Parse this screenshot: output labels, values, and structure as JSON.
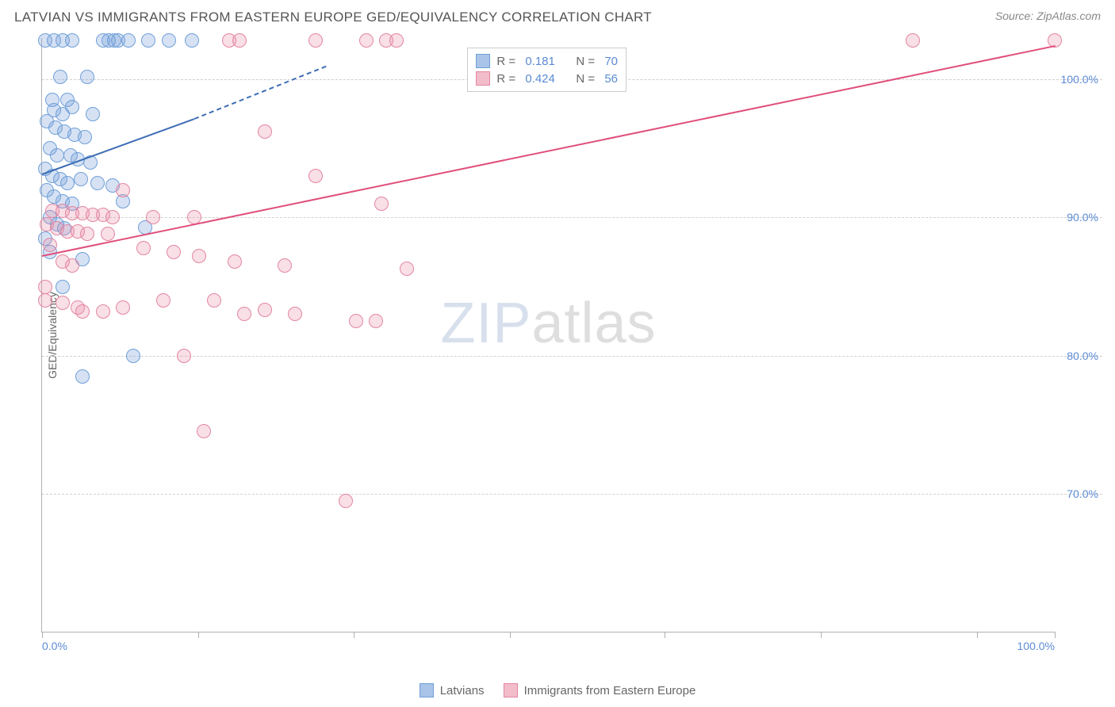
{
  "title": "LATVIAN VS IMMIGRANTS FROM EASTERN EUROPE GED/EQUIVALENCY CORRELATION CHART",
  "source": "Source: ZipAtlas.com",
  "watermark_a": "ZIP",
  "watermark_b": "atlas",
  "chart": {
    "type": "scatter",
    "background_color": "#ffffff",
    "grid_color": "#d0d0d0",
    "axis_color": "#b0b0b0",
    "tick_label_color": "#5b8bd4",
    "ylabel": "GED/Equivalency",
    "ylabel_color": "#666666",
    "ylabel_fontsize": 14,
    "xlim": [
      0,
      100
    ],
    "ylim": [
      60,
      103
    ],
    "xticks": [
      0,
      15.4,
      30.8,
      46.2,
      61.5,
      76.9,
      92.3,
      100
    ],
    "xtick_labels_shown": {
      "0": "0.0%",
      "100": "100.0%"
    },
    "yticks": [
      70,
      80,
      90,
      100
    ],
    "ytick_labels": {
      "70": "70.0%",
      "80": "80.0%",
      "90": "90.0%",
      "100": "100.0%"
    },
    "point_radius": 9,
    "point_stroke_width": 1.5,
    "series": [
      {
        "name": "Latvians",
        "fill": "rgba(120,160,220,0.30)",
        "stroke": "#6f9fd8",
        "swatch_fill": "#a9c4e8",
        "swatch_border": "#6f9fd8",
        "R": "0.181",
        "N": "70",
        "trend": {
          "color": "#3d6db5",
          "solid": {
            "x1": 0,
            "y1": 93.2,
            "x2": 15,
            "y2": 97.2
          },
          "dash": {
            "x1": 15,
            "y1": 97.2,
            "x2": 28,
            "y2": 101
          }
        },
        "points": [
          [
            0.3,
            102.8
          ],
          [
            1.2,
            102.8
          ],
          [
            2.0,
            102.8
          ],
          [
            3.0,
            102.8
          ],
          [
            6.0,
            102.8
          ],
          [
            6.6,
            102.8
          ],
          [
            7.1,
            102.8
          ],
          [
            7.5,
            102.8
          ],
          [
            8.5,
            102.8
          ],
          [
            10.5,
            102.8
          ],
          [
            12.5,
            102.8
          ],
          [
            14.8,
            102.8
          ],
          [
            1.8,
            100.2
          ],
          [
            4.5,
            100.2
          ],
          [
            1.0,
            98.5
          ],
          [
            2.5,
            98.5
          ],
          [
            3.0,
            98.0
          ],
          [
            1.2,
            97.8
          ],
          [
            2.0,
            97.5
          ],
          [
            5.0,
            97.5
          ],
          [
            0.5,
            97.0
          ],
          [
            1.3,
            96.5
          ],
          [
            2.2,
            96.2
          ],
          [
            3.2,
            96.0
          ],
          [
            4.2,
            95.8
          ],
          [
            0.8,
            95.0
          ],
          [
            1.5,
            94.5
          ],
          [
            2.8,
            94.5
          ],
          [
            3.5,
            94.2
          ],
          [
            4.8,
            94.0
          ],
          [
            0.3,
            93.5
          ],
          [
            1.0,
            93.0
          ],
          [
            1.8,
            92.8
          ],
          [
            2.5,
            92.5
          ],
          [
            3.8,
            92.8
          ],
          [
            5.5,
            92.5
          ],
          [
            7.0,
            92.3
          ],
          [
            0.5,
            92.0
          ],
          [
            1.2,
            91.5
          ],
          [
            2.0,
            91.2
          ],
          [
            3.0,
            91.0
          ],
          [
            8.0,
            91.2
          ],
          [
            0.8,
            90.0
          ],
          [
            1.5,
            89.5
          ],
          [
            2.2,
            89.2
          ],
          [
            10.2,
            89.3
          ],
          [
            0.3,
            88.5
          ],
          [
            0.8,
            87.5
          ],
          [
            4.0,
            87.0
          ],
          [
            2.0,
            85.0
          ],
          [
            9.0,
            80.0
          ],
          [
            4.0,
            78.5
          ]
        ]
      },
      {
        "name": "Immigrants from Eastern Europe",
        "fill": "rgba(235,140,165,0.28)",
        "stroke": "#e386a2",
        "swatch_fill": "#f3bccb",
        "swatch_border": "#e386a2",
        "R": "0.424",
        "N": "56",
        "trend": {
          "color": "#e04f7b",
          "solid": {
            "x1": 0,
            "y1": 87.3,
            "x2": 100,
            "y2": 102.5
          }
        },
        "points": [
          [
            18.5,
            102.8
          ],
          [
            19.5,
            102.8
          ],
          [
            27.0,
            102.8
          ],
          [
            32.0,
            102.8
          ],
          [
            34.0,
            102.8
          ],
          [
            35.0,
            102.8
          ],
          [
            86.0,
            102.8
          ],
          [
            100.0,
            102.8
          ],
          [
            22.0,
            96.2
          ],
          [
            27.0,
            93.0
          ],
          [
            8.0,
            92.0
          ],
          [
            33.5,
            91.0
          ],
          [
            1.0,
            90.5
          ],
          [
            2.0,
            90.5
          ],
          [
            3.0,
            90.3
          ],
          [
            4.0,
            90.3
          ],
          [
            5.0,
            90.2
          ],
          [
            6.0,
            90.2
          ],
          [
            7.0,
            90.0
          ],
          [
            11.0,
            90.0
          ],
          [
            15.0,
            90.0
          ],
          [
            0.5,
            89.5
          ],
          [
            1.5,
            89.2
          ],
          [
            2.5,
            89.0
          ],
          [
            3.5,
            89.0
          ],
          [
            4.5,
            88.8
          ],
          [
            6.5,
            88.8
          ],
          [
            0.8,
            88.0
          ],
          [
            10.0,
            87.8
          ],
          [
            13.0,
            87.5
          ],
          [
            15.5,
            87.2
          ],
          [
            2.0,
            86.8
          ],
          [
            3.0,
            86.5
          ],
          [
            19.0,
            86.8
          ],
          [
            24.0,
            86.5
          ],
          [
            36.0,
            86.3
          ],
          [
            0.3,
            85.0
          ],
          [
            0.3,
            84.0
          ],
          [
            2.0,
            83.8
          ],
          [
            3.5,
            83.5
          ],
          [
            4.0,
            83.2
          ],
          [
            6.0,
            83.2
          ],
          [
            8.0,
            83.5
          ],
          [
            12.0,
            84.0
          ],
          [
            17.0,
            84.0
          ],
          [
            20.0,
            83.0
          ],
          [
            22.0,
            83.3
          ],
          [
            25.0,
            83.0
          ],
          [
            31.0,
            82.5
          ],
          [
            33.0,
            82.5
          ],
          [
            14.0,
            80.0
          ],
          [
            16.0,
            74.5
          ],
          [
            30.0,
            69.5
          ]
        ]
      }
    ]
  },
  "stats_labels": {
    "r": "R =",
    "n": "N ="
  },
  "legend": {
    "items": [
      {
        "label": "Latvians",
        "series": 0
      },
      {
        "label": "Immigrants from Eastern Europe",
        "series": 1
      }
    ]
  }
}
